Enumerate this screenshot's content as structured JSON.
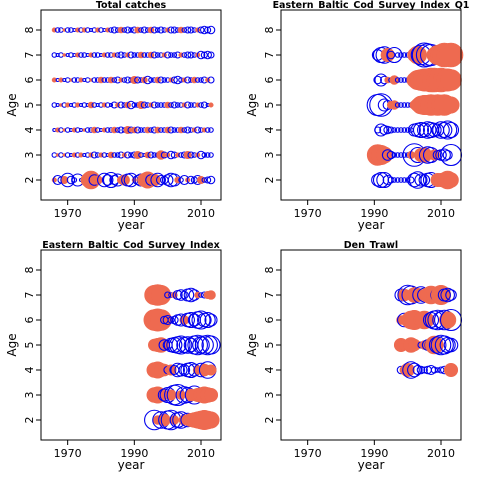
{
  "colors": {
    "negative": "#ee6a50",
    "positive": "#0000ee",
    "frame": "#000000",
    "background": "#ffffff"
  },
  "chart_data": [
    {
      "type": "scatter",
      "title": "Total catches",
      "xlabel": "year",
      "ylabel": "Age",
      "xlim": [
        1962,
        2016
      ],
      "ylim": [
        1.2,
        8.8
      ],
      "xticks": [
        "1970",
        "1990",
        "2010"
      ],
      "yticks": [
        "2",
        "3",
        "4",
        "5",
        "6",
        "7",
        "8"
      ],
      "grid": false,
      "legend": "none",
      "year_range": [
        1966,
        2013
      ],
      "ages": [
        2,
        3,
        4,
        5,
        6,
        7,
        8
      ],
      "size_scale": 7.5,
      "residual_rows": [
        {
          "age": 2,
          "values": [
            -0.3,
            0.6,
            0.4,
            -0.5,
            0.9,
            0.5,
            0.3,
            0.8,
            0.2,
            -0.4,
            -0.9,
            -1.2,
            0.7,
            -0.6,
            -0.3,
            0.9,
            0.7,
            1.0,
            0.6,
            0.8,
            -0.5,
            -0.7,
            0.8,
            0.9,
            -0.3,
            0.6,
            0.8,
            -0.9,
            -1.1,
            0.7,
            -0.8,
            0.9,
            0.6,
            0.5,
            0.7,
            0.9,
            0.8,
            -0.4,
            0.3,
            0.6,
            -0.3,
            0.5,
            0.4,
            0.6,
            -0.5,
            0.3,
            0.4,
            0.5
          ]
        },
        {
          "age": 3,
          "values": [
            0.3,
            -0.2,
            0.3,
            -0.2,
            0.3,
            0.2,
            -0.3,
            0.3,
            -0.3,
            0.2,
            0.3,
            -0.3,
            0.4,
            0.3,
            -0.3,
            0.3,
            0.2,
            -0.4,
            0.3,
            0.3,
            0.4,
            -0.3,
            0.4,
            0.3,
            0.4,
            -0.5,
            0.3,
            0.2,
            -0.4,
            0.4,
            0.3,
            0.3,
            -0.6,
            0.4,
            -0.3,
            0.5,
            0.4,
            -0.3,
            0.3,
            0.4,
            -0.5,
            0.4,
            0.3,
            -0.3,
            0.5,
            0.3,
            0.3,
            0.3
          ]
        },
        {
          "age": 4,
          "values": [
            0.2,
            -0.3,
            0.3,
            -0.2,
            0.3,
            0.2,
            -0.3,
            0.3,
            0.2,
            -0.2,
            0.3,
            0.3,
            -0.4,
            0.3,
            0.2,
            -0.3,
            0.3,
            0.3,
            -0.4,
            0.3,
            0.4,
            0.3,
            -0.5,
            0.4,
            -0.4,
            0.4,
            0.3,
            0.3,
            -0.4,
            0.3,
            0.4,
            -0.4,
            0.3,
            0.3,
            -0.4,
            0.4,
            0.3,
            0.3,
            -0.4,
            0.3,
            0.4,
            0.3,
            -0.3,
            0.4,
            0.3,
            -0.3,
            0.3,
            0.3
          ]
        },
        {
          "age": 5,
          "values": [
            0.3,
            0.2,
            -0.2,
            0.3,
            -0.3,
            0.2,
            0.3,
            -0.3,
            0.2,
            0.3,
            0.2,
            -0.4,
            0.3,
            0.2,
            0.3,
            -0.3,
            0.3,
            0.2,
            0.4,
            -0.3,
            0.4,
            0.3,
            -0.4,
            0.5,
            0.3,
            0.3,
            -0.5,
            0.4,
            0.3,
            -0.3,
            0.4,
            0.3,
            0.3,
            0.3,
            -0.4,
            0.3,
            0.4,
            0.3,
            0.3,
            -0.3,
            0.4,
            0.3,
            0.3,
            -0.3,
            0.3,
            0.4,
            0.2,
            -0.3
          ]
        },
        {
          "age": 6,
          "values": [
            -0.3,
            0.2,
            -0.3,
            0.2,
            0.3,
            -0.2,
            0.3,
            0.3,
            -0.3,
            0.2,
            0.3,
            -0.2,
            0.3,
            0.3,
            -0.4,
            0.3,
            0.3,
            -0.4,
            0.3,
            0.4,
            -0.3,
            0.3,
            0.4,
            0.3,
            -0.5,
            0.4,
            0.3,
            -0.4,
            0.5,
            0.3,
            0.3,
            -0.4,
            0.4,
            0.3,
            0.3,
            -0.3,
            0.4,
            0.5,
            0.3,
            -0.3,
            0.4,
            0.3,
            -0.4,
            0.3,
            0.3,
            0.4,
            -0.3,
            0.4
          ]
        },
        {
          "age": 7,
          "values": [
            0.3,
            0.2,
            0.3,
            -0.2,
            0.2,
            0.3,
            0.2,
            -0.3,
            0.3,
            0.3,
            0.2,
            -0.3,
            0.3,
            0.3,
            0.2,
            -0.3,
            0.3,
            0.3,
            -0.3,
            0.3,
            0.4,
            0.3,
            -0.3,
            0.4,
            0.3,
            0.3,
            -0.4,
            0.3,
            0.3,
            -0.4,
            0.4,
            0.3,
            0.3,
            -0.3,
            0.4,
            0.3,
            0.3,
            0.4,
            -0.3,
            0.3,
            0.4,
            0.4,
            0.3,
            -0.3,
            0.5,
            0.4,
            0.5,
            0.4
          ]
        },
        {
          "age": 8,
          "values": [
            -0.3,
            0.3,
            0.3,
            -0.2,
            0.3,
            0.3,
            0.2,
            -0.3,
            0.3,
            -0.3,
            0.3,
            0.2,
            0.3,
            -0.3,
            0.3,
            0.2,
            -0.3,
            0.3,
            0.4,
            0.3,
            -0.4,
            0.3,
            0.4,
            0.3,
            0.4,
            -0.4,
            0.3,
            0.4,
            0.3,
            -0.4,
            0.4,
            0.3,
            0.4,
            0.3,
            -0.3,
            0.4,
            0.4,
            0.3,
            -0.4,
            0.3,
            0.4,
            0.4,
            0.3,
            -0.3,
            0.4,
            0.5,
            0.4,
            0.5
          ]
        }
      ]
    },
    {
      "type": "scatter",
      "title": "Eastern_Baltic_Cod_Survey_Index_Q1",
      "xlabel": "year",
      "ylabel": "Age",
      "xlim": [
        1962,
        2016
      ],
      "ylim": [
        1.2,
        8.8
      ],
      "xticks": [
        "1970",
        "1990",
        "2010"
      ],
      "yticks": [
        "2",
        "3",
        "4",
        "5",
        "6",
        "7",
        "8"
      ],
      "grid": false,
      "legend": "none",
      "year_range": [
        1991,
        2013
      ],
      "ages": [
        2,
        3,
        4,
        5,
        6,
        7
      ],
      "size_scale": 7.5,
      "residual_rows": [
        {
          "age": 2,
          "values": [
            0.8,
            1.0,
            1.0,
            0.6,
            0.4,
            0.3,
            0.3,
            0.3,
            0.3,
            0.3,
            0.4,
            0.9,
            1.1,
            0.8,
            0.7,
            0.9,
            1.0,
            -0.4,
            -0.9,
            -0.9,
            -1.0,
            -1.2,
            -1.0
          ]
        },
        {
          "age": 3,
          "values": [
            -1.4,
            -1.3,
            -1.1,
            0.7,
            0.5,
            0.3,
            0.3,
            0.3,
            0.3,
            0.3,
            -0.5,
            1.5,
            1.0,
            -0.9,
            -1.0,
            1.1,
            1.0,
            -0.7,
            0.6,
            0.7,
            0.8,
            0.6,
            1.4
          ]
        },
        {
          "age": 4,
          "values": [
            0.4,
            0.8,
            0.6,
            0.5,
            0.4,
            0.3,
            0.3,
            0.3,
            0.3,
            0.3,
            0.3,
            0.8,
            0.9,
            1.0,
            0.9,
            1.1,
            1.0,
            0.9,
            0.8,
            1.1,
            1.0,
            1.2,
            1.0
          ]
        },
        {
          "age": 5,
          "values": [
            1.4,
            1.5,
            0.8,
            0.6,
            -0.5,
            -0.6,
            0.3,
            0.3,
            0.3,
            0.3,
            0.3,
            -0.6,
            -0.9,
            -1.2,
            -1.3,
            -1.3,
            -1.4,
            -1.3,
            -1.4,
            -1.3,
            -1.4,
            -1.2,
            -1.1
          ]
        },
        {
          "age": 6,
          "values": [
            0.5,
            0.8,
            0.5,
            -0.4,
            0.3,
            -0.6,
            0.3,
            0.3,
            0.3,
            0.3,
            0.3,
            -1.0,
            -1.3,
            -1.4,
            -1.5,
            -1.5,
            -1.6,
            -1.6,
            -1.5,
            -1.6,
            -1.5,
            -1.5,
            -1.4
          ]
        },
        {
          "age": 7,
          "values": [
            0.7,
            1.0,
            1.1,
            -0.9,
            0.5,
            1.0,
            0.3,
            0.3,
            0.3,
            0.3,
            0.3,
            -0.9,
            -1.2,
            1.3,
            1.6,
            1.5,
            1.4,
            -1.0,
            -1.3,
            -1.4,
            -1.6,
            -1.5,
            -1.6
          ]
        }
      ]
    },
    {
      "type": "scatter",
      "title": "Eastern_Baltic_Cod_Survey_Index",
      "xlabel": "year",
      "ylabel": "Age",
      "xlim": [
        1962,
        2016
      ],
      "ylim": [
        1.2,
        8.8
      ],
      "xticks": [
        "1970",
        "1990",
        "2010"
      ],
      "yticks": [
        "2",
        "3",
        "4",
        "5",
        "6",
        "7",
        "8"
      ],
      "grid": false,
      "legend": "none",
      "year_range": [
        1996,
        2013
      ],
      "ages": [
        2,
        3,
        4,
        5,
        6,
        7
      ],
      "size_scale": 7.5,
      "residual_rows": [
        {
          "age": 2,
          "values": [
            1.3,
            -0.6,
            1.1,
            -0.8,
            1.2,
            1.3,
            -0.6,
            1.0,
            1.1,
            -0.7,
            0.9,
            -0.9,
            -1.0,
            -1.1,
            -1.2,
            -1.3,
            -1.2,
            -1.1
          ]
        },
        {
          "age": 3,
          "values": [
            -1.0,
            -1.1,
            -0.9,
            0.8,
            1.0,
            -0.7,
            1.3,
            1.4,
            -0.6,
            1.1,
            1.0,
            -0.8,
            1.2,
            -0.9,
            -1.0,
            -1.1,
            -1.0,
            -0.9
          ]
        },
        {
          "age": 4,
          "values": [
            -1.0,
            -1.1,
            -0.9,
            -0.8,
            0.5,
            -0.7,
            0.6,
            0.9,
            0.8,
            0.7,
            0.9,
            1.0,
            0.8,
            -0.6,
            0.9,
            -0.8,
            1.1,
            -0.7
          ]
        },
        {
          "age": 5,
          "values": [
            -0.8,
            -0.9,
            -1.0,
            0.7,
            0.6,
            0.9,
            1.0,
            1.1,
            1.2,
            1.0,
            1.1,
            0.9,
            1.2,
            1.3,
            1.1,
            1.2,
            1.3,
            1.2
          ]
        },
        {
          "age": 6,
          "values": [
            -1.4,
            -1.5,
            -1.4,
            0.5,
            0.6,
            0.4,
            0.5,
            0.7,
            0.8,
            -0.6,
            0.9,
            1.0,
            0.8,
            1.1,
            1.2,
            0.9,
            1.0,
            0.8
          ]
        },
        {
          "age": 7,
          "values": [
            -1.3,
            -1.4,
            -1.3,
            -0.6,
            0.4,
            0.3,
            -0.4,
            0.6,
            0.7,
            0.5,
            0.8,
            0.9,
            0.7,
            -0.4,
            0.3,
            0.4,
            -0.5,
            -0.6
          ]
        }
      ]
    },
    {
      "type": "scatter",
      "title": "Den_Trawl",
      "xlabel": "year",
      "ylabel": "Age",
      "xlim": [
        1962,
        2016
      ],
      "ylim": [
        1.2,
        8.8
      ],
      "xticks": [
        "1970",
        "1990",
        "2010"
      ],
      "yticks": [
        "2",
        "3",
        "4",
        "5",
        "6",
        "7",
        "8"
      ],
      "grid": false,
      "legend": "none",
      "year_range": [
        1998,
        2013
      ],
      "ages": [
        4,
        5,
        6,
        7
      ],
      "size_scale": 7.5,
      "residual_rows": [
        {
          "age": 4,
          "values": [
            0.5,
            -0.6,
            -0.9,
            1.1,
            0.9,
            0.6,
            0.5,
            0.4,
            0.5,
            0.6,
            0.4,
            0.3,
            0.4,
            0.5,
            0.4,
            -0.9
          ]
        },
        {
          "age": 5,
          "values": [
            -0.9,
            -0.7,
            -0.6,
            -1.0,
            -0.8,
            -0.5,
            0.4,
            -0.6,
            0.7,
            0.8,
            -1.2,
            1.1,
            1.3,
            1.2,
            1.0,
            0.9
          ]
        },
        {
          "age": 6,
          "values": [
            -0.6,
            0.9,
            -0.9,
            -1.2,
            -1.3,
            -1.1,
            -1.0,
            -1.2,
            -0.9,
            1.0,
            1.2,
            1.3,
            1.1,
            1.3,
            -1.1,
            1.4
          ]
        },
        {
          "age": 7,
          "values": [
            0.8,
            -0.8,
            1.3,
            1.2,
            -1.0,
            -0.9,
            1.1,
            0.9,
            -1.0,
            -1.2,
            -1.1,
            0.9,
            -1.3,
            0.8,
            0.9,
            0.7
          ]
        }
      ]
    }
  ]
}
